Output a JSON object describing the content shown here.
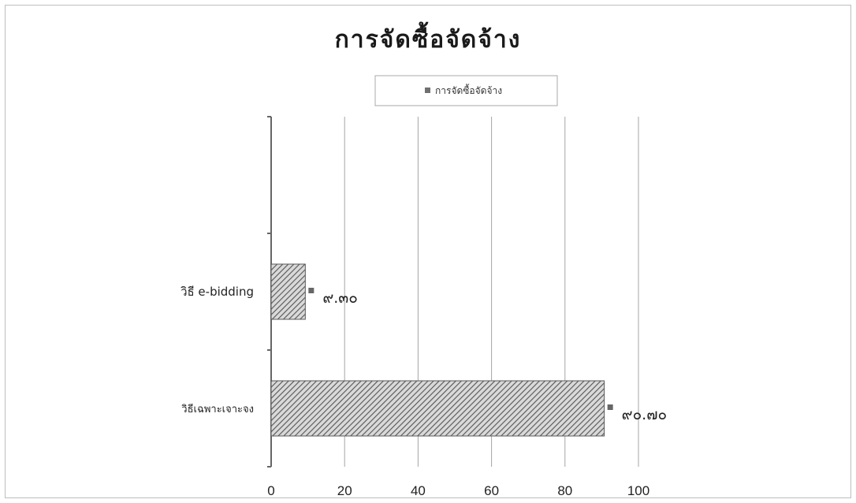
{
  "chart_data": {
    "type": "bar",
    "orientation": "horizontal",
    "title": "การจัดซื้อจัดจ้าง",
    "legend": {
      "entries": [
        "การจัดซื้อจัดจ้าง"
      ],
      "placement": "top"
    },
    "categories": [
      "วิธี e-bidding",
      "วิธีเฉพาะเจาะจง"
    ],
    "series": [
      {
        "name": "การจัดซื้อจัดจ้าง",
        "values": [
          9.3,
          90.7
        ],
        "data_labels": [
          "๙.๓๐",
          "๙๐.๗๐"
        ],
        "color": "#8a8a8a",
        "pattern": "diagonal-hatch"
      }
    ],
    "xlim": [
      0,
      100
    ],
    "x_ticks": [
      0,
      20,
      40,
      60,
      80,
      100
    ],
    "x_tick_labels": [
      "0",
      "20",
      "40",
      "60",
      "80",
      "100"
    ],
    "grid": "vertical-lines",
    "xlabel": "",
    "ylabel": ""
  }
}
